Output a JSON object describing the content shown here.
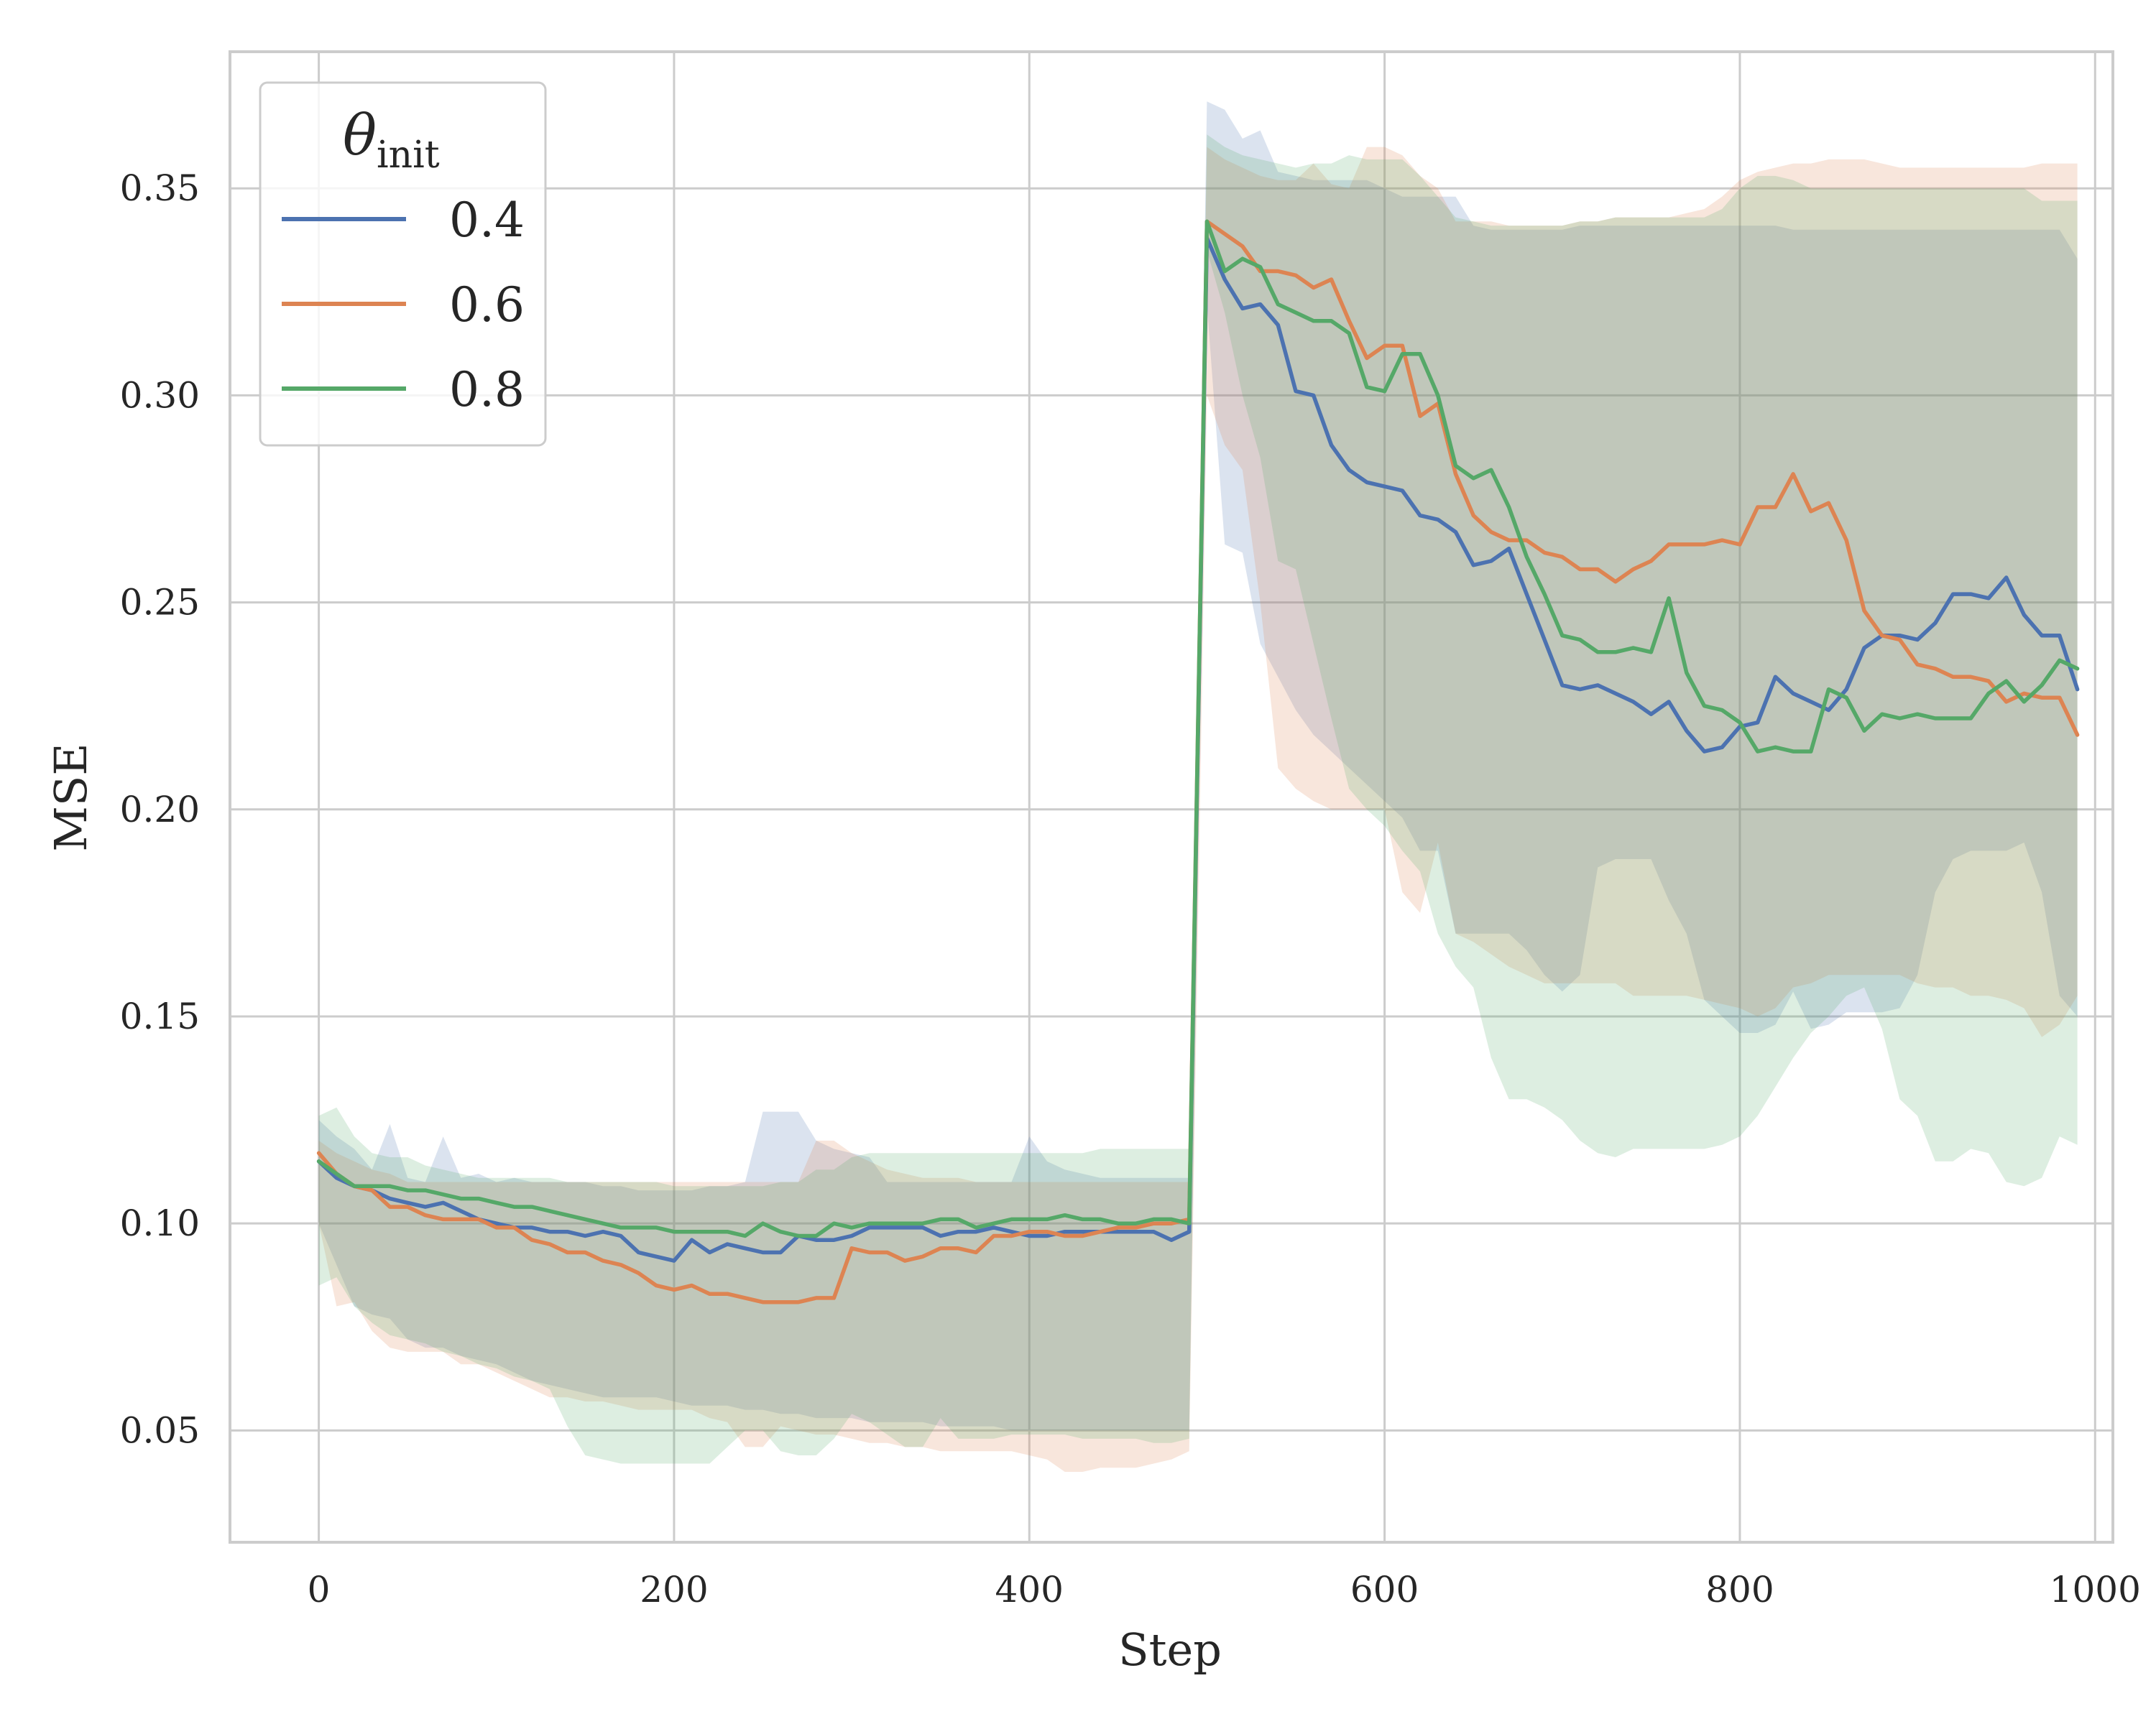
{
  "chart_data": {
    "type": "line",
    "xlabel": "Step",
    "ylabel": "MSE",
    "xlim": [
      -50,
      1010
    ],
    "ylim": [
      0.023,
      0.383
    ],
    "xticks": [
      0,
      200,
      400,
      600,
      800,
      1000
    ],
    "xtick_labels": [
      "0",
      "200",
      "400",
      "600",
      "800",
      "1000"
    ],
    "yticks": [
      0.05,
      0.1,
      0.15,
      0.2,
      0.25,
      0.3,
      0.35
    ],
    "ytick_labels": [
      "0.05",
      "0.10",
      "0.15",
      "0.20",
      "0.25",
      "0.30",
      "0.35"
    ],
    "grid": true,
    "legend": {
      "title_symbol": "θ",
      "title_subscript": "init",
      "placement": "upper-left"
    },
    "x": [
      0,
      10,
      20,
      30,
      40,
      50,
      60,
      70,
      80,
      90,
      100,
      110,
      120,
      130,
      140,
      150,
      160,
      170,
      180,
      190,
      200,
      210,
      220,
      230,
      240,
      250,
      260,
      270,
      280,
      290,
      300,
      310,
      320,
      330,
      340,
      350,
      360,
      370,
      380,
      390,
      400,
      410,
      420,
      430,
      440,
      450,
      460,
      470,
      480,
      490,
      500,
      510,
      520,
      530,
      540,
      550,
      560,
      570,
      580,
      590,
      600,
      610,
      620,
      630,
      640,
      650,
      660,
      670,
      680,
      690,
      700,
      710,
      720,
      730,
      740,
      750,
      760,
      770,
      780,
      790,
      800,
      810,
      820,
      830,
      840,
      850,
      860,
      870,
      880,
      890,
      900,
      910,
      920,
      930,
      940,
      950,
      960,
      970,
      980,
      990
    ],
    "series": [
      {
        "name": "0.4",
        "color": "#4c72b0",
        "values": [
          0.115,
          0.111,
          0.109,
          0.108,
          0.106,
          0.105,
          0.104,
          0.105,
          0.103,
          0.101,
          0.1,
          0.099,
          0.099,
          0.098,
          0.098,
          0.097,
          0.098,
          0.097,
          0.093,
          0.092,
          0.091,
          0.096,
          0.093,
          0.095,
          0.094,
          0.093,
          0.093,
          0.097,
          0.096,
          0.096,
          0.097,
          0.099,
          0.099,
          0.099,
          0.099,
          0.097,
          0.098,
          0.098,
          0.099,
          0.098,
          0.097,
          0.097,
          0.098,
          0.098,
          0.098,
          0.098,
          0.098,
          0.098,
          0.096,
          0.098,
          0.338,
          0.328,
          0.321,
          0.322,
          0.317,
          0.301,
          0.3,
          0.288,
          0.282,
          0.279,
          0.278,
          0.277,
          0.271,
          0.27,
          0.267,
          0.259,
          0.26,
          0.263,
          0.252,
          0.241,
          0.23,
          0.229,
          0.23,
          0.228,
          0.226,
          0.223,
          0.226,
          0.219,
          0.214,
          0.215,
          0.22,
          0.221,
          0.232,
          0.228,
          0.226,
          0.224,
          0.229,
          0.239,
          0.242,
          0.242,
          0.241,
          0.245,
          0.252,
          0.252,
          0.251,
          0.256,
          0.247,
          0.242,
          0.242,
          0.229
        ],
        "lower": [
          0.1,
          0.09,
          0.08,
          0.078,
          0.077,
          0.072,
          0.07,
          0.07,
          0.068,
          0.067,
          0.066,
          0.064,
          0.062,
          0.061,
          0.06,
          0.059,
          0.058,
          0.058,
          0.058,
          0.058,
          0.057,
          0.056,
          0.056,
          0.056,
          0.055,
          0.055,
          0.054,
          0.054,
          0.053,
          0.053,
          0.053,
          0.052,
          0.052,
          0.052,
          0.052,
          0.051,
          0.051,
          0.051,
          0.051,
          0.05,
          0.05,
          0.05,
          0.05,
          0.05,
          0.05,
          0.05,
          0.05,
          0.05,
          0.05,
          0.05,
          0.322,
          0.264,
          0.262,
          0.24,
          0.232,
          0.224,
          0.218,
          0.214,
          0.21,
          0.206,
          0.202,
          0.198,
          0.19,
          0.19,
          0.17,
          0.17,
          0.17,
          0.17,
          0.166,
          0.16,
          0.156,
          0.16,
          0.186,
          0.188,
          0.188,
          0.188,
          0.178,
          0.17,
          0.154,
          0.15,
          0.146,
          0.146,
          0.148,
          0.156,
          0.147,
          0.148,
          0.151,
          0.151,
          0.151,
          0.152,
          0.16,
          0.18,
          0.188,
          0.19,
          0.19,
          0.19,
          0.192,
          0.18,
          0.155,
          0.15
        ],
        "upper": [
          0.125,
          0.121,
          0.118,
          0.113,
          0.124,
          0.111,
          0.11,
          0.121,
          0.111,
          0.112,
          0.11,
          0.111,
          0.11,
          0.11,
          0.11,
          0.11,
          0.109,
          0.109,
          0.108,
          0.108,
          0.108,
          0.108,
          0.109,
          0.109,
          0.11,
          0.127,
          0.127,
          0.127,
          0.12,
          0.118,
          0.117,
          0.116,
          0.11,
          0.11,
          0.11,
          0.11,
          0.11,
          0.11,
          0.11,
          0.11,
          0.121,
          0.115,
          0.113,
          0.112,
          0.111,
          0.111,
          0.111,
          0.111,
          0.111,
          0.111,
          0.371,
          0.369,
          0.362,
          0.364,
          0.354,
          0.353,
          0.352,
          0.352,
          0.352,
          0.352,
          0.35,
          0.348,
          0.348,
          0.348,
          0.348,
          0.341,
          0.34,
          0.34,
          0.34,
          0.34,
          0.34,
          0.341,
          0.341,
          0.341,
          0.341,
          0.341,
          0.341,
          0.341,
          0.341,
          0.341,
          0.341,
          0.341,
          0.341,
          0.34,
          0.34,
          0.34,
          0.34,
          0.34,
          0.34,
          0.34,
          0.34,
          0.34,
          0.34,
          0.34,
          0.34,
          0.34,
          0.34,
          0.34,
          0.34,
          0.333
        ]
      },
      {
        "name": "0.6",
        "color": "#dd8452",
        "values": [
          0.117,
          0.112,
          0.109,
          0.108,
          0.104,
          0.104,
          0.102,
          0.101,
          0.101,
          0.101,
          0.099,
          0.099,
          0.096,
          0.095,
          0.093,
          0.093,
          0.091,
          0.09,
          0.088,
          0.085,
          0.084,
          0.085,
          0.083,
          0.083,
          0.082,
          0.081,
          0.081,
          0.081,
          0.082,
          0.082,
          0.094,
          0.093,
          0.093,
          0.091,
          0.092,
          0.094,
          0.094,
          0.093,
          0.097,
          0.097,
          0.098,
          0.098,
          0.097,
          0.097,
          0.098,
          0.099,
          0.099,
          0.1,
          0.1,
          0.101,
          0.342,
          0.339,
          0.336,
          0.33,
          0.33,
          0.329,
          0.326,
          0.328,
          0.318,
          0.309,
          0.312,
          0.312,
          0.295,
          0.298,
          0.281,
          0.271,
          0.267,
          0.265,
          0.265,
          0.262,
          0.261,
          0.258,
          0.258,
          0.255,
          0.258,
          0.26,
          0.264,
          0.264,
          0.264,
          0.265,
          0.264,
          0.273,
          0.273,
          0.281,
          0.272,
          0.274,
          0.265,
          0.248,
          0.242,
          0.241,
          0.235,
          0.234,
          0.232,
          0.232,
          0.231,
          0.226,
          0.228,
          0.227,
          0.227,
          0.218
        ],
        "lower": [
          0.1,
          0.08,
          0.081,
          0.074,
          0.07,
          0.069,
          0.069,
          0.069,
          0.066,
          0.066,
          0.064,
          0.062,
          0.06,
          0.058,
          0.058,
          0.057,
          0.057,
          0.056,
          0.055,
          0.055,
          0.055,
          0.055,
          0.053,
          0.052,
          0.046,
          0.046,
          0.051,
          0.05,
          0.049,
          0.049,
          0.048,
          0.047,
          0.047,
          0.046,
          0.046,
          0.045,
          0.045,
          0.045,
          0.045,
          0.045,
          0.044,
          0.043,
          0.04,
          0.04,
          0.041,
          0.041,
          0.041,
          0.042,
          0.043,
          0.045,
          0.3,
          0.288,
          0.282,
          0.25,
          0.21,
          0.205,
          0.202,
          0.2,
          0.2,
          0.2,
          0.2,
          0.18,
          0.175,
          0.192,
          0.17,
          0.168,
          0.165,
          0.162,
          0.16,
          0.158,
          0.158,
          0.158,
          0.158,
          0.158,
          0.155,
          0.155,
          0.155,
          0.155,
          0.154,
          0.153,
          0.152,
          0.15,
          0.152,
          0.157,
          0.158,
          0.16,
          0.16,
          0.16,
          0.16,
          0.16,
          0.158,
          0.157,
          0.157,
          0.155,
          0.155,
          0.154,
          0.152,
          0.145,
          0.148,
          0.155
        ],
        "upper": [
          0.12,
          0.117,
          0.115,
          0.113,
          0.112,
          0.11,
          0.11,
          0.11,
          0.11,
          0.11,
          0.11,
          0.11,
          0.11,
          0.11,
          0.11,
          0.11,
          0.11,
          0.11,
          0.11,
          0.11,
          0.11,
          0.11,
          0.11,
          0.11,
          0.11,
          0.11,
          0.11,
          0.11,
          0.12,
          0.12,
          0.117,
          0.115,
          0.113,
          0.112,
          0.111,
          0.111,
          0.111,
          0.11,
          0.11,
          0.11,
          0.11,
          0.11,
          0.11,
          0.11,
          0.11,
          0.11,
          0.11,
          0.11,
          0.11,
          0.11,
          0.36,
          0.357,
          0.355,
          0.353,
          0.352,
          0.352,
          0.356,
          0.351,
          0.35,
          0.36,
          0.36,
          0.358,
          0.353,
          0.35,
          0.342,
          0.342,
          0.342,
          0.341,
          0.341,
          0.341,
          0.341,
          0.342,
          0.342,
          0.343,
          0.343,
          0.343,
          0.343,
          0.344,
          0.345,
          0.348,
          0.352,
          0.354,
          0.355,
          0.356,
          0.356,
          0.357,
          0.357,
          0.357,
          0.356,
          0.355,
          0.355,
          0.355,
          0.355,
          0.355,
          0.355,
          0.355,
          0.355,
          0.356,
          0.356,
          0.356
        ]
      },
      {
        "name": "0.8",
        "color": "#55a868",
        "values": [
          0.115,
          0.112,
          0.109,
          0.109,
          0.109,
          0.108,
          0.108,
          0.107,
          0.106,
          0.106,
          0.105,
          0.104,
          0.104,
          0.103,
          0.102,
          0.101,
          0.1,
          0.099,
          0.099,
          0.099,
          0.098,
          0.098,
          0.098,
          0.098,
          0.097,
          0.1,
          0.098,
          0.097,
          0.097,
          0.1,
          0.099,
          0.1,
          0.1,
          0.1,
          0.1,
          0.101,
          0.101,
          0.099,
          0.1,
          0.101,
          0.101,
          0.101,
          0.102,
          0.101,
          0.101,
          0.1,
          0.1,
          0.101,
          0.101,
          0.1,
          0.342,
          0.33,
          0.333,
          0.331,
          0.322,
          0.32,
          0.318,
          0.318,
          0.315,
          0.302,
          0.301,
          0.31,
          0.31,
          0.3,
          0.283,
          0.28,
          0.282,
          0.273,
          0.261,
          0.252,
          0.242,
          0.241,
          0.238,
          0.238,
          0.239,
          0.238,
          0.251,
          0.233,
          0.225,
          0.224,
          0.221,
          0.214,
          0.215,
          0.214,
          0.214,
          0.229,
          0.227,
          0.219,
          0.223,
          0.222,
          0.223,
          0.222,
          0.222,
          0.222,
          0.228,
          0.231,
          0.226,
          0.23,
          0.236,
          0.234
        ],
        "lower": [
          0.085,
          0.087,
          0.08,
          0.076,
          0.073,
          0.072,
          0.071,
          0.069,
          0.068,
          0.066,
          0.065,
          0.063,
          0.062,
          0.06,
          0.051,
          0.044,
          0.043,
          0.042,
          0.042,
          0.042,
          0.042,
          0.042,
          0.042,
          0.046,
          0.05,
          0.05,
          0.045,
          0.044,
          0.044,
          0.048,
          0.054,
          0.052,
          0.049,
          0.046,
          0.046,
          0.053,
          0.048,
          0.048,
          0.048,
          0.049,
          0.049,
          0.049,
          0.049,
          0.048,
          0.048,
          0.048,
          0.048,
          0.047,
          0.047,
          0.048,
          0.335,
          0.32,
          0.3,
          0.285,
          0.26,
          0.258,
          0.24,
          0.222,
          0.205,
          0.2,
          0.196,
          0.19,
          0.185,
          0.17,
          0.162,
          0.157,
          0.14,
          0.13,
          0.13,
          0.128,
          0.125,
          0.12,
          0.117,
          0.116,
          0.118,
          0.118,
          0.118,
          0.118,
          0.118,
          0.119,
          0.121,
          0.126,
          0.133,
          0.14,
          0.146,
          0.15,
          0.155,
          0.157,
          0.147,
          0.13,
          0.126,
          0.115,
          0.115,
          0.118,
          0.117,
          0.11,
          0.109,
          0.111,
          0.121,
          0.119
        ],
        "upper": [
          0.126,
          0.128,
          0.121,
          0.117,
          0.116,
          0.116,
          0.114,
          0.113,
          0.112,
          0.111,
          0.111,
          0.111,
          0.111,
          0.111,
          0.11,
          0.11,
          0.11,
          0.11,
          0.11,
          0.11,
          0.109,
          0.109,
          0.109,
          0.109,
          0.109,
          0.109,
          0.11,
          0.11,
          0.113,
          0.113,
          0.116,
          0.117,
          0.117,
          0.117,
          0.117,
          0.117,
          0.117,
          0.117,
          0.117,
          0.117,
          0.117,
          0.117,
          0.117,
          0.117,
          0.118,
          0.118,
          0.118,
          0.118,
          0.118,
          0.118,
          0.363,
          0.36,
          0.358,
          0.357,
          0.356,
          0.355,
          0.356,
          0.356,
          0.358,
          0.357,
          0.357,
          0.357,
          0.353,
          0.348,
          0.343,
          0.342,
          0.341,
          0.341,
          0.341,
          0.341,
          0.341,
          0.342,
          0.342,
          0.343,
          0.343,
          0.343,
          0.343,
          0.343,
          0.343,
          0.345,
          0.35,
          0.353,
          0.353,
          0.352,
          0.35,
          0.35,
          0.35,
          0.35,
          0.35,
          0.35,
          0.35,
          0.35,
          0.35,
          0.35,
          0.35,
          0.35,
          0.35,
          0.347,
          0.347,
          0.347
        ]
      }
    ]
  }
}
